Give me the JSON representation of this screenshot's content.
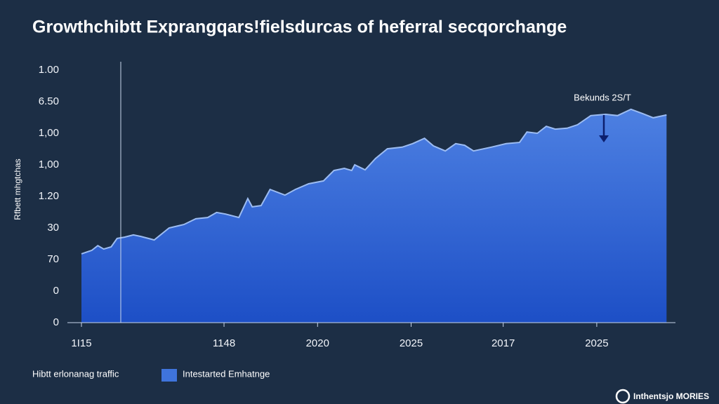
{
  "chart_data": {
    "type": "area",
    "title": "Growthchibtt Exprangqars!fielsdurcas of heferral secqorchange",
    "y_label": "Rfbett mhgtchas",
    "annotation": "Bekunds 2S/T",
    "legend_title": "Hibtt erlonanag traffic",
    "watermark": "Inthentsjo MORIES",
    "x": [
      0,
      0.7,
      1.1,
      1.5,
      2.0,
      2.4,
      2.9,
      3.5,
      4.0,
      4.5,
      4.9,
      5.9,
      6.9,
      7.7,
      8.5,
      9.1,
      9.7,
      10.6,
      11.2,
      11.5,
      12.1,
      12.7,
      13.7,
      14.4,
      15.3,
      16.3,
      17.0,
      17.7,
      18.2,
      18.4,
      19.1,
      19.8,
      20.6,
      21.6,
      22.3,
      23.1,
      23.7,
      24.5,
      25.2,
      25.8,
      26.4,
      27.6,
      28.6,
      29.5,
      30.0,
      30.7,
      31.3,
      31.9,
      32.7,
      33.4,
      34.3,
      35.3,
      36.1,
      37.0,
      37.8,
      38.5,
      39.4
    ],
    "series": [
      {
        "name": "Intestarted Emhatnge",
        "color": "#3f74dc",
        "values": [
          2.18,
          2.29,
          2.44,
          2.33,
          2.4,
          2.67,
          2.71,
          2.78,
          2.73,
          2.67,
          2.62,
          3.0,
          3.11,
          3.29,
          3.33,
          3.49,
          3.44,
          3.33,
          3.93,
          3.67,
          3.71,
          4.22,
          4.04,
          4.22,
          4.4,
          4.49,
          4.82,
          4.89,
          4.82,
          5.0,
          4.84,
          5.2,
          5.51,
          5.56,
          5.67,
          5.84,
          5.6,
          5.44,
          5.67,
          5.62,
          5.44,
          5.56,
          5.67,
          5.71,
          6.04,
          6.0,
          6.22,
          6.13,
          6.16,
          6.27,
          6.56,
          6.6,
          6.56,
          6.76,
          6.62,
          6.49,
          6.58
        ]
      }
    ],
    "xlim": [
      0,
      40
    ],
    "xticks": [
      {
        "value": 0,
        "label": "1I15"
      },
      {
        "value": 9.6,
        "label": "1148"
      },
      {
        "value": 15.9,
        "label": "2020"
      },
      {
        "value": 22.2,
        "label": "2025"
      },
      {
        "value": 28.4,
        "label": "2017"
      },
      {
        "value": 34.7,
        "label": "2025"
      }
    ],
    "ylim": [
      0,
      8
    ],
    "yticks": [
      0,
      {
        "value": 1,
        "label": "0"
      },
      {
        "value": 2,
        "label": "70"
      },
      {
        "value": 3,
        "label": "30"
      },
      {
        "value": 4,
        "label": "1.20"
      },
      {
        "value": 5,
        "label": "1,00"
      },
      {
        "value": 6,
        "label": "1,00"
      },
      {
        "value": 7,
        "label": "6.50"
      },
      {
        "value": 8,
        "label": "1.00"
      }
    ],
    "grid": false
  }
}
